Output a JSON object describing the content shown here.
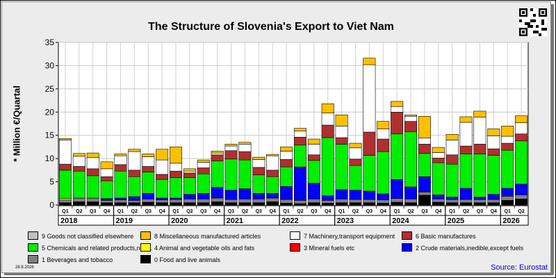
{
  "page": {
    "title": "The Structure of Slovenia's Export to Viet Nam",
    "source": "Source: Eurostat",
    "date": "28.8.2026"
  },
  "chart_data": {
    "type": "bar",
    "stacked": true,
    "title": "The Structure of Slovenia's Export to Viet Nam",
    "ylabel": "* Million €/Quartal",
    "ylim": [
      0,
      35
    ],
    "yticks": [
      0,
      5,
      10,
      15,
      20,
      25,
      30,
      35
    ],
    "grid": true,
    "legend_position": "bottom",
    "categories": [
      "Q1",
      "Q2",
      "Q3",
      "Q4",
      "Q1",
      "Q2",
      "Q3",
      "Q4",
      "Q1",
      "Q2",
      "Q3",
      "Q4",
      "Q1",
      "Q2",
      "Q3",
      "Q4",
      "Q1",
      "Q2",
      "Q3",
      "Q4",
      "Q1",
      "Q2",
      "Q3",
      "Q4",
      "Q1",
      "Q2",
      "Q3",
      "Q4",
      "Q1",
      "Q2",
      "Q3",
      "Q4",
      "Q1",
      "Q2"
    ],
    "years": [
      {
        "label": "2018",
        "quarters": 4
      },
      {
        "label": "2019",
        "quarters": 4
      },
      {
        "label": "2020",
        "quarters": 4
      },
      {
        "label": "2021",
        "quarters": 4
      },
      {
        "label": "2022",
        "quarters": 4
      },
      {
        "label": "2023",
        "quarters": 4
      },
      {
        "label": "2024",
        "quarters": 4
      },
      {
        "label": "2025",
        "quarters": 4
      },
      {
        "label": "2026",
        "quarters": 2
      }
    ],
    "series": [
      {
        "name": "0 Food and live animals",
        "color": "#000000",
        "values": [
          0.5,
          0.7,
          0.7,
          0.5,
          0.5,
          0.5,
          0.6,
          0.5,
          0.5,
          0.5,
          0.5,
          0.7,
          0.5,
          0.5,
          0.5,
          0.7,
          0.4,
          0.3,
          0.5,
          0.4,
          0.5,
          0.5,
          0.5,
          0.4,
          0.6,
          0.5,
          2.1,
          0.6,
          0.5,
          0.5,
          0.5,
          0.5,
          1.0,
          1.3
        ]
      },
      {
        "name": "1 Beverages and tobacco",
        "color": "#808080",
        "values": [
          0.6,
          0.8,
          0.8,
          0.5,
          0.6,
          0.5,
          0.7,
          0.6,
          0.7,
          0.8,
          0.8,
          0.8,
          0.7,
          0.8,
          0.8,
          0.8,
          0.8,
          0.7,
          0.8,
          0.6,
          0.8,
          0.7,
          0.7,
          0.7,
          0.8,
          0.8,
          0.7,
          0.7,
          0.7,
          0.7,
          0.7,
          0.7,
          0.9,
          0.9
        ]
      },
      {
        "name": "2 Crude materials,inedible,except fuels",
        "color": "#0000ff",
        "values": [
          0,
          0,
          0,
          0.4,
          0.4,
          0.8,
          1.2,
          0.4,
          0.3,
          1.0,
          1.2,
          2.3,
          2.0,
          2.2,
          1.2,
          1.0,
          2.8,
          7.2,
          3.4,
          1.0,
          2.0,
          2.0,
          1.8,
          1.3,
          4.1,
          2.6,
          3.3,
          0.9,
          0.5,
          2.4,
          0.5,
          1.1,
          1.7,
          2.3
        ]
      },
      {
        "name": "3 Mineral fuels etc",
        "color": "#ff0000",
        "values": [
          0,
          0,
          0,
          0,
          0,
          0,
          0,
          0,
          0,
          0,
          0,
          0,
          0,
          0,
          0,
          0,
          0,
          0,
          0,
          0,
          0,
          0,
          0,
          0,
          0,
          0,
          0,
          0,
          0,
          0,
          0,
          0,
          0,
          0
        ]
      },
      {
        "name": "4 Animal and vegetable oils and fats",
        "color": "#ffff00",
        "values": [
          0.3,
          0,
          0,
          0,
          0,
          0,
          0,
          0,
          0,
          0,
          0,
          0,
          0,
          0,
          0,
          0,
          0,
          0,
          0,
          0,
          0,
          0,
          0,
          0,
          0,
          0,
          0,
          0,
          0,
          0,
          0,
          0,
          0,
          0
        ]
      },
      {
        "name": "5 Chemicals and related products,n.e.s.",
        "color": "#00ee00",
        "values": [
          6.1,
          5.8,
          4.8,
          3.8,
          5.8,
          4.3,
          4.6,
          4.0,
          4.4,
          3.6,
          4.2,
          5.7,
          6.7,
          6.2,
          4.0,
          3.6,
          4.2,
          4.7,
          4.9,
          12.5,
          9.8,
          5.3,
          7.7,
          9.1,
          9.8,
          11.9,
          5.0,
          6.9,
          7.1,
          7.4,
          9.3,
          8.4,
          8.2,
          9.3
        ]
      },
      {
        "name": "6 Basic manufactures",
        "color": "#b03030",
        "values": [
          1.3,
          1.0,
          1.5,
          0.9,
          1.4,
          1.4,
          1.2,
          1.1,
          1.4,
          1.0,
          1.3,
          1.3,
          1.8,
          1.8,
          1.6,
          1.4,
          1.6,
          1.7,
          1.2,
          2.7,
          1.4,
          1.4,
          5.0,
          2.7,
          4.7,
          2.2,
          2.0,
          1.0,
          2.0,
          1.7,
          2.1,
          1.4,
          1.5,
          1.5
        ]
      },
      {
        "name": "7 Machinery,transport equipment",
        "color": "#ffffff",
        "values": [
          5.2,
          2.2,
          2.4,
          1.7,
          1.9,
          4.0,
          2.1,
          3.1,
          1.7,
          0.4,
          1.2,
          0.4,
          1.0,
          1.6,
          1.7,
          3.1,
          1.8,
          1.3,
          2.3,
          2.6,
          2.5,
          2.4,
          14.5,
          2.2,
          1.2,
          1.1,
          1.3,
          1.2,
          3.2,
          5.1,
          5.8,
          2.8,
          1.5,
          2.4
        ]
      },
      {
        "name": "8 Miscellaneous manufactured articles",
        "color": "#ffc000",
        "values": [
          0.3,
          0.6,
          1.0,
          1.5,
          0.4,
          0.5,
          0.6,
          2.3,
          3.5,
          0.5,
          0.5,
          0.4,
          0.4,
          0.4,
          0.5,
          0.3,
          0.9,
          0.6,
          1.1,
          2.0,
          2.4,
          1.0,
          1.4,
          1.6,
          1.1,
          0.3,
          4.7,
          1.1,
          1.2,
          1.2,
          1.3,
          1.5,
          2.2,
          1.5
        ]
      },
      {
        "name": "9 Goods not classified elsewhere",
        "color": "#c0c0c0",
        "values": [
          0,
          0,
          0,
          0,
          0,
          0,
          0,
          0,
          0,
          0,
          0,
          0,
          0,
          0,
          0,
          0,
          0,
          0,
          0,
          0,
          0,
          0,
          0,
          0,
          0,
          0,
          0,
          0,
          0,
          0,
          0,
          0,
          0,
          0
        ]
      }
    ]
  },
  "legend": [
    {
      "label": "9 Goods not classified elsewhere",
      "color": "#c0c0c0"
    },
    {
      "label": "8 Miscellaneous manufactured articles",
      "color": "#ffc000"
    },
    {
      "label": "7 Machinery,transport equipment",
      "color": "#ffffff"
    },
    {
      "label": "6 Basic manufactures",
      "color": "#b03030"
    },
    {
      "label": "5 Chemicals and related products,n.e.s.",
      "color": "#00ee00"
    },
    {
      "label": "4 Animal and vegetable oils and fats",
      "color": "#ffff00"
    },
    {
      "label": "3 Mineral fuels etc",
      "color": "#ff0000"
    },
    {
      "label": "2 Crude materials,inedible,except fuels",
      "color": "#0000ff"
    },
    {
      "label": "1 Beverages and tobacco",
      "color": "#808080"
    },
    {
      "label": "0 Food and live animals",
      "color": "#000000"
    }
  ]
}
